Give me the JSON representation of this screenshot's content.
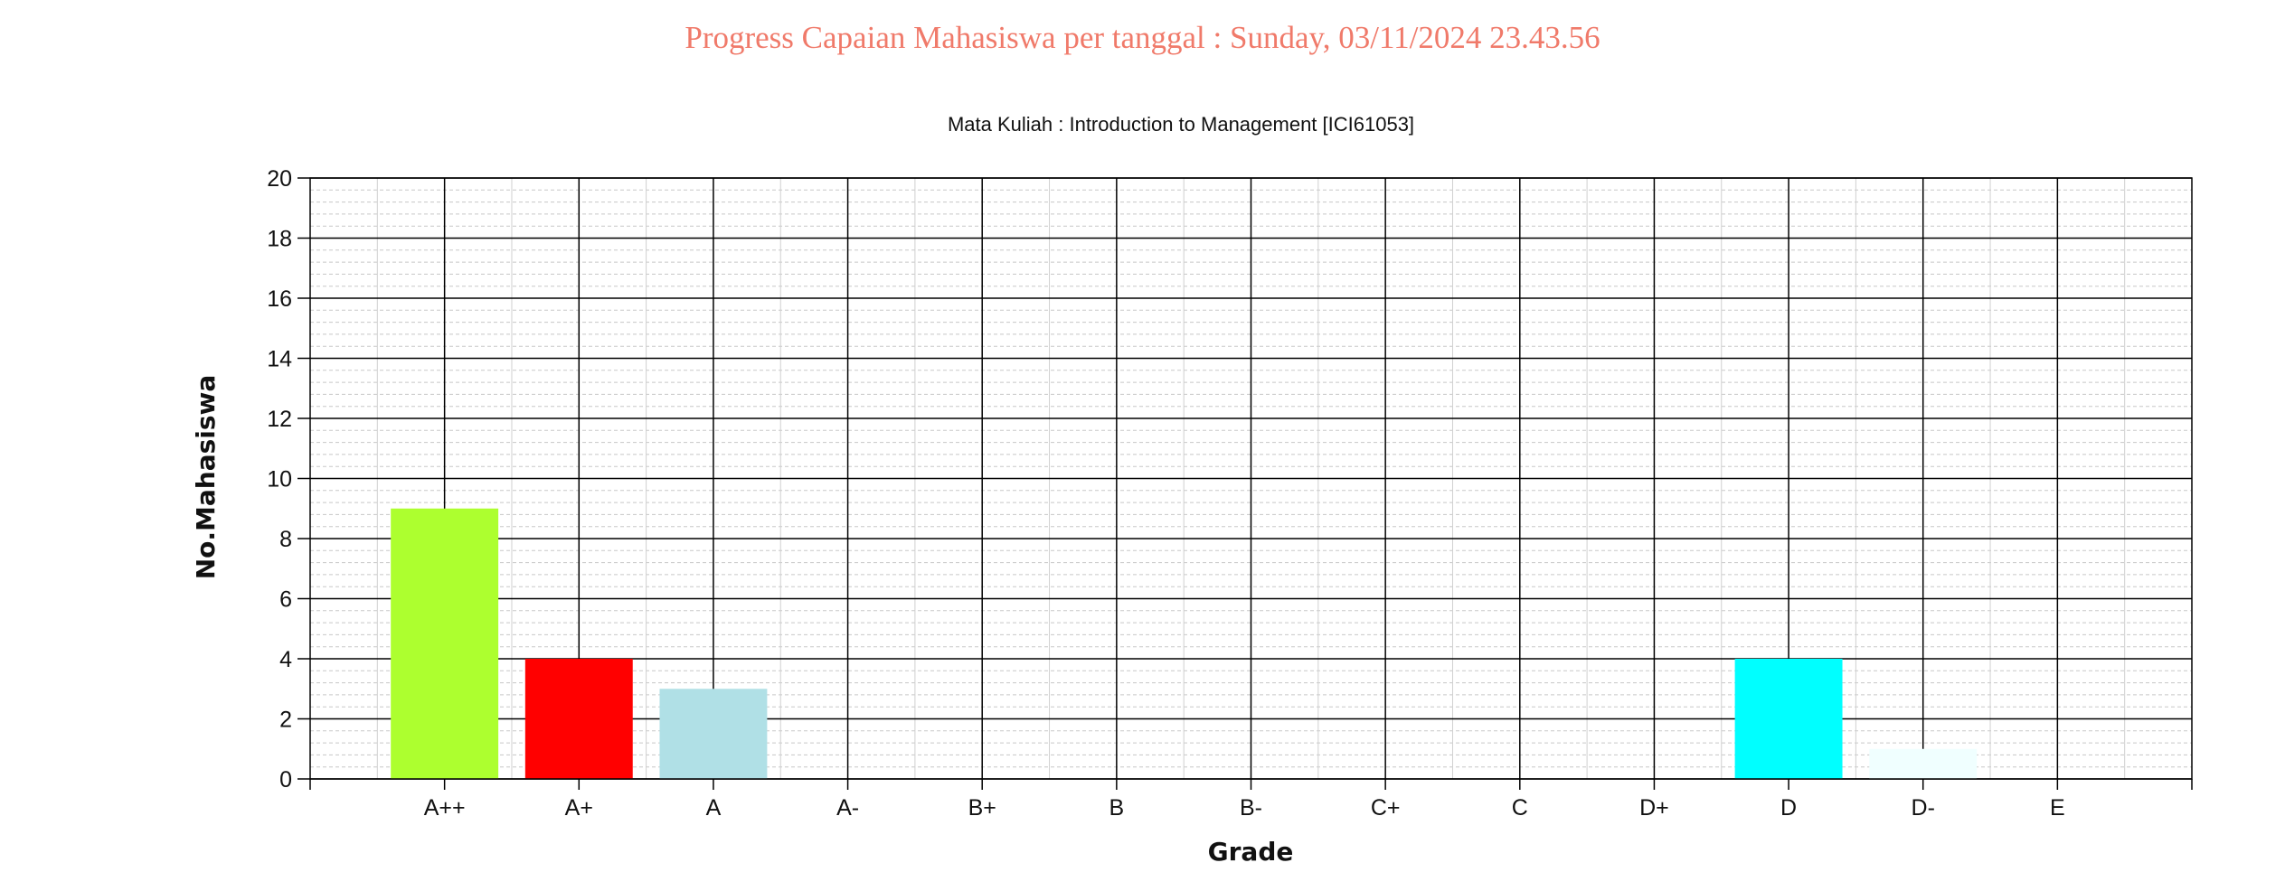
{
  "page": {
    "title": "Progress Capaian Mahasiswa per tanggal : Sunday, 03/11/2024 23.43.56",
    "title_color": "#f07a6a"
  },
  "chart_data": {
    "type": "bar",
    "title": "Mata Kuliah : Introduction to Management [ICI61053]",
    "xlabel": "Grade",
    "ylabel": "No.Mahasiswa",
    "categories": [
      "A++",
      "A+",
      "A",
      "A-",
      "B+",
      "B",
      "B-",
      "C+",
      "C",
      "D+",
      "D",
      "D-",
      "E"
    ],
    "values": [
      9,
      4,
      3,
      0,
      0,
      0,
      0,
      0,
      0,
      0,
      4,
      1,
      0
    ],
    "bar_colors": [
      "#adff2f",
      "#ff0000",
      "#b0e0e6",
      "#000000",
      "#000000",
      "#000000",
      "#000000",
      "#000000",
      "#000000",
      "#000000",
      "#00ffff",
      "#f0ffff",
      "#000000"
    ],
    "ylim": [
      0,
      20
    ],
    "yticks": [
      0,
      2,
      4,
      6,
      8,
      10,
      12,
      14,
      16,
      18,
      20
    ],
    "grid": true,
    "legend": "none"
  }
}
